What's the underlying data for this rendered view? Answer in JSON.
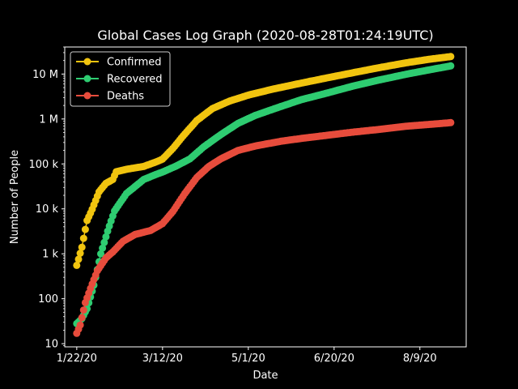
{
  "chart_data": {
    "type": "line",
    "title": "Global Cases Log Graph (2020-08-28T01:24:19UTC)",
    "xlabel": "Date",
    "ylabel": "Number of People",
    "yscale": "log",
    "ylim": [
      8.5,
      40000000
    ],
    "xlim": [
      "2020-01-15",
      "2020-09-05"
    ],
    "x_ticks": [
      {
        "label": "1/22/20",
        "date": "2020-01-22"
      },
      {
        "label": "3/12/20",
        "date": "2020-03-12"
      },
      {
        "label": "5/1/20",
        "date": "2020-05-01"
      },
      {
        "label": "6/20/20",
        "date": "2020-06-20"
      },
      {
        "label": "8/9/20",
        "date": "2020-08-09"
      }
    ],
    "y_ticks": [
      {
        "label": "10",
        "value": 10
      },
      {
        "label": "100",
        "value": 100
      },
      {
        "label": "1 k",
        "value": 1000
      },
      {
        "label": "10 k",
        "value": 10000
      },
      {
        "label": "100 k",
        "value": 100000
      },
      {
        "label": "1 M",
        "value": 1000000
      },
      {
        "label": "10 M",
        "value": 10000000
      }
    ],
    "grid": false,
    "legend_position": "top-left",
    "background": "#000000",
    "foreground": "#ffffff",
    "series": [
      {
        "name": "Confirmed",
        "color": "#f1c40f",
        "points": [
          [
            "2020-01-22",
            555
          ],
          [
            "2020-01-25",
            1400
          ],
          [
            "2020-01-28",
            5500
          ],
          [
            "2020-01-31",
            9800
          ],
          [
            "2020-02-04",
            24000
          ],
          [
            "2020-02-08",
            37000
          ],
          [
            "2020-02-12",
            45000
          ],
          [
            "2020-02-14",
            67000
          ],
          [
            "2020-02-20",
            76000
          ],
          [
            "2020-03-01",
            88000
          ],
          [
            "2020-03-08",
            110000
          ],
          [
            "2020-03-12",
            128000
          ],
          [
            "2020-03-18",
            220000
          ],
          [
            "2020-03-24",
            420000
          ],
          [
            "2020-04-01",
            930000
          ],
          [
            "2020-04-10",
            1700000
          ],
          [
            "2020-04-20",
            2500000
          ],
          [
            "2020-05-01",
            3400000
          ],
          [
            "2020-05-15",
            4600000
          ],
          [
            "2020-06-01",
            6300000
          ],
          [
            "2020-06-15",
            8100000
          ],
          [
            "2020-07-01",
            10700000
          ],
          [
            "2020-07-15",
            13600000
          ],
          [
            "2020-08-01",
            17800000
          ],
          [
            "2020-08-15",
            21500000
          ],
          [
            "2020-08-27",
            24500000
          ]
        ]
      },
      {
        "name": "Recovered",
        "color": "#2ecc71",
        "points": [
          [
            "2020-01-22",
            28
          ],
          [
            "2020-01-25",
            36
          ],
          [
            "2020-01-28",
            60
          ],
          [
            "2020-02-01",
            200
          ],
          [
            "2020-02-05",
            1000
          ],
          [
            "2020-02-09",
            3200
          ],
          [
            "2020-02-13",
            9000
          ],
          [
            "2020-02-20",
            22000
          ],
          [
            "2020-03-01",
            45000
          ],
          [
            "2020-03-08",
            58000
          ],
          [
            "2020-03-12",
            66000
          ],
          [
            "2020-03-20",
            90000
          ],
          [
            "2020-03-28",
            130000
          ],
          [
            "2020-04-05",
            240000
          ],
          [
            "2020-04-15",
            450000
          ],
          [
            "2020-04-25",
            800000
          ],
          [
            "2020-05-05",
            1200000
          ],
          [
            "2020-05-20",
            1900000
          ],
          [
            "2020-06-01",
            2700000
          ],
          [
            "2020-06-15",
            3700000
          ],
          [
            "2020-07-01",
            5400000
          ],
          [
            "2020-07-15",
            7200000
          ],
          [
            "2020-08-01",
            9900000
          ],
          [
            "2020-08-15",
            12500000
          ],
          [
            "2020-08-27",
            15200000
          ]
        ]
      },
      {
        "name": "Deaths",
        "color": "#e74c3c",
        "points": [
          [
            "2020-01-22",
            17
          ],
          [
            "2020-01-24",
            26
          ],
          [
            "2020-01-27",
            82
          ],
          [
            "2020-01-30",
            170
          ],
          [
            "2020-02-03",
            420
          ],
          [
            "2020-02-08",
            810
          ],
          [
            "2020-02-12",
            1100
          ],
          [
            "2020-02-18",
            1900
          ],
          [
            "2020-02-25",
            2700
          ],
          [
            "2020-03-05",
            3300
          ],
          [
            "2020-03-12",
            4700
          ],
          [
            "2020-03-18",
            8700
          ],
          [
            "2020-03-25",
            22000
          ],
          [
            "2020-04-01",
            50000
          ],
          [
            "2020-04-08",
            88000
          ],
          [
            "2020-04-15",
            130000
          ],
          [
            "2020-04-25",
            200000
          ],
          [
            "2020-05-05",
            250000
          ],
          [
            "2020-05-20",
            320000
          ],
          [
            "2020-06-01",
            370000
          ],
          [
            "2020-06-15",
            430000
          ],
          [
            "2020-07-01",
            510000
          ],
          [
            "2020-07-15",
            580000
          ],
          [
            "2020-08-01",
            690000
          ],
          [
            "2020-08-15",
            760000
          ],
          [
            "2020-08-27",
            830000
          ]
        ]
      }
    ]
  }
}
